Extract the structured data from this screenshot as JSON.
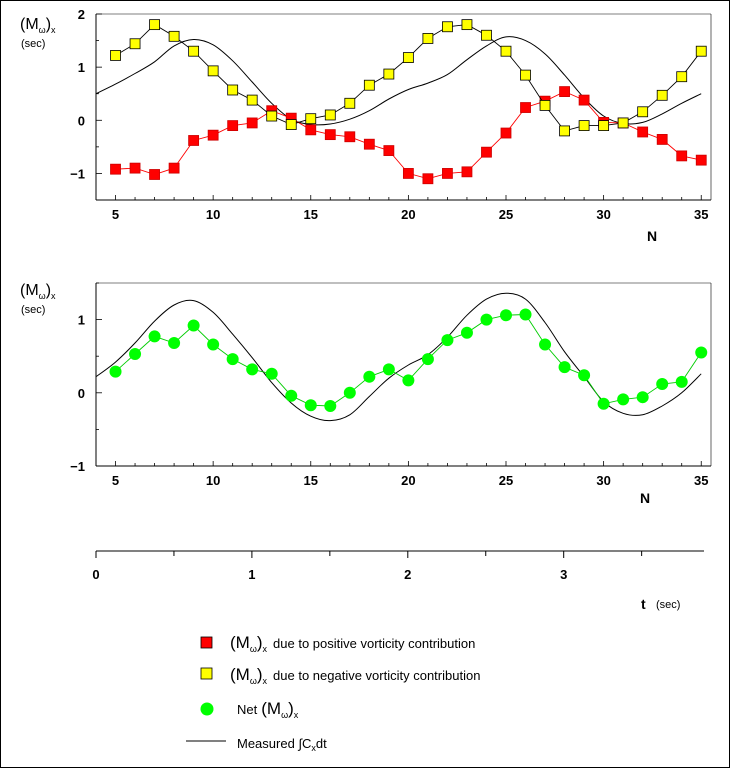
{
  "chart_data": [
    {
      "type": "line",
      "ylabel": {
        "main": "(M",
        "sub1": "ω",
        "close": ")",
        "sub2": "x",
        "unit": "(sec)"
      },
      "xlabel": "N",
      "xlim": [
        4,
        35.5
      ],
      "ylim": [
        -1.5,
        2
      ],
      "xticks": [
        5,
        10,
        15,
        20,
        25,
        30,
        35
      ],
      "xtick_labels": [
        "5",
        "10",
        "15",
        "20",
        "25",
        "30",
        "35"
      ],
      "yticks": [
        -1,
        0,
        1,
        2
      ],
      "ytick_labels": [
        "−1",
        "0",
        "1",
        "2"
      ],
      "series": [
        {
          "name": "positive vorticity",
          "marker": "square",
          "color": "#ff0000",
          "x": [
            5,
            6,
            7,
            8,
            9,
            10,
            11,
            12,
            13,
            14,
            15,
            16,
            17,
            18,
            19,
            20,
            21,
            22,
            23,
            24,
            25,
            26,
            27,
            28,
            29,
            30,
            31,
            32,
            33,
            34,
            35
          ],
          "y": [
            -0.92,
            -0.9,
            -1.02,
            -0.9,
            -0.38,
            -0.28,
            -0.1,
            -0.05,
            0.18,
            0.04,
            -0.18,
            -0.27,
            -0.31,
            -0.45,
            -0.57,
            -1.0,
            -1.1,
            -1.0,
            -0.97,
            -0.6,
            -0.24,
            0.24,
            0.36,
            0.54,
            0.38,
            -0.04,
            -0.05,
            -0.22,
            -0.36,
            -0.67,
            -0.75
          ]
        },
        {
          "name": "negative vorticity",
          "marker": "square",
          "color": "#ffff00",
          "x": [
            5,
            6,
            7,
            8,
            9,
            10,
            11,
            12,
            13,
            14,
            15,
            16,
            17,
            18,
            19,
            20,
            21,
            22,
            23,
            24,
            25,
            26,
            27,
            28,
            29,
            30,
            31,
            32,
            33,
            34,
            35
          ],
          "y": [
            1.22,
            1.44,
            1.8,
            1.58,
            1.3,
            0.93,
            0.57,
            0.38,
            0.08,
            -0.08,
            0.03,
            0.1,
            0.32,
            0.66,
            0.87,
            1.18,
            1.54,
            1.76,
            1.8,
            1.6,
            1.3,
            0.85,
            0.28,
            -0.2,
            -0.1,
            -0.1,
            -0.05,
            0.16,
            0.47,
            0.82,
            1.3
          ]
        },
        {
          "name": "measured",
          "marker": "none",
          "color": "#000000",
          "x": [
            4,
            5,
            6,
            7,
            8,
            9,
            10,
            11,
            12,
            13,
            14,
            15,
            16,
            17,
            18,
            19,
            20,
            21,
            22,
            23,
            24,
            25,
            26,
            27,
            28,
            29,
            30,
            31,
            32,
            33,
            34,
            35
          ],
          "y": [
            0.5,
            0.68,
            0.88,
            1.1,
            1.4,
            1.52,
            1.42,
            1.12,
            0.72,
            0.32,
            0.02,
            -0.08,
            -0.07,
            0.02,
            0.18,
            0.4,
            0.58,
            0.7,
            0.86,
            1.14,
            1.4,
            1.57,
            1.5,
            1.25,
            0.85,
            0.42,
            0.08,
            -0.06,
            -0.04,
            0.12,
            0.32,
            0.5
          ]
        }
      ]
    },
    {
      "type": "line",
      "ylabel": {
        "main": "(M",
        "sub1": "ω",
        "close": ")",
        "sub2": "x",
        "unit": "(sec)"
      },
      "xlabel": "N",
      "xlim": [
        4,
        35.5
      ],
      "ylim": [
        -1,
        1.5
      ],
      "xticks": [
        5,
        10,
        15,
        20,
        25,
        30,
        35
      ],
      "xtick_labels": [
        "5",
        "10",
        "15",
        "20",
        "25",
        "30",
        "35"
      ],
      "yticks": [
        -1,
        0,
        1
      ],
      "ytick_labels": [
        "−1",
        "0",
        "1"
      ],
      "series": [
        {
          "name": "net",
          "marker": "circle",
          "color": "#00ff00",
          "x": [
            5,
            6,
            7,
            8,
            9,
            10,
            11,
            12,
            13,
            14,
            15,
            16,
            17,
            18,
            19,
            20,
            21,
            22,
            23,
            24,
            25,
            26,
            27,
            28,
            29,
            30,
            31,
            32,
            33,
            34,
            35
          ],
          "y": [
            0.29,
            0.53,
            0.77,
            0.68,
            0.92,
            0.66,
            0.46,
            0.32,
            0.26,
            -0.04,
            -0.17,
            -0.18,
            0.0,
            0.22,
            0.32,
            0.17,
            0.46,
            0.72,
            0.82,
            1.0,
            1.06,
            1.07,
            0.66,
            0.35,
            0.24,
            -0.15,
            -0.09,
            -0.06,
            0.12,
            0.15,
            0.55
          ]
        },
        {
          "name": "measured",
          "marker": "none",
          "color": "#000000",
          "x": [
            4,
            5,
            6,
            7,
            8,
            9,
            10,
            11,
            12,
            13,
            14,
            15,
            16,
            17,
            18,
            19,
            20,
            21,
            22,
            23,
            24,
            25,
            26,
            27,
            28,
            29,
            30,
            31,
            32,
            33,
            34,
            35
          ],
          "y": [
            0.22,
            0.42,
            0.68,
            0.98,
            1.2,
            1.26,
            1.1,
            0.8,
            0.48,
            0.14,
            -0.14,
            -0.32,
            -0.38,
            -0.3,
            -0.05,
            0.2,
            0.38,
            0.52,
            0.76,
            1.06,
            1.28,
            1.36,
            1.28,
            0.96,
            0.56,
            0.22,
            -0.12,
            -0.28,
            -0.3,
            -0.18,
            0.0,
            0.26
          ]
        }
      ]
    },
    {
      "type": "axis",
      "xlabel": "t",
      "xlabel_unit": "(sec)",
      "xlim": [
        0,
        3.9
      ],
      "major_ticks": [
        0,
        1,
        2,
        3
      ],
      "major_labels": [
        "0",
        "1",
        "2",
        "3"
      ],
      "minor_ticks": [
        0.5,
        1.5,
        2.5,
        3.5
      ]
    }
  ],
  "legend": [
    {
      "marker": "square",
      "color": "#ff0000",
      "big": "(M",
      "sub1": "ω",
      "close": ")",
      "sub2": "x",
      "text": "due to positive vorticity contribution"
    },
    {
      "marker": "square",
      "color": "#ffff00",
      "big": "(M",
      "sub1": "ω",
      "close": ")",
      "sub2": "x",
      "text": "due to negative vorticity contribution"
    },
    {
      "marker": "circle",
      "color": "#00ff00",
      "pre": "Net",
      "big": "(M",
      "sub1": "ω",
      "close": ")",
      "sub2": "x"
    },
    {
      "marker": "line",
      "color": "#000000",
      "text": "Measured ∫C",
      "sub": "x",
      "tail": "dt"
    }
  ]
}
